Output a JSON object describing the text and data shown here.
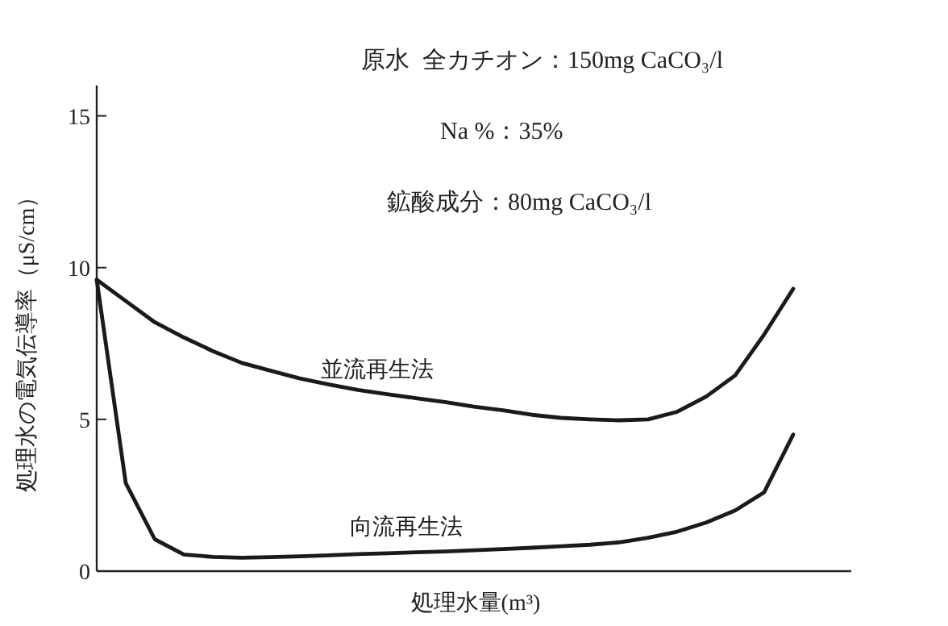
{
  "chart_data": {
    "type": "line",
    "xlabel": "処理水量(m³)",
    "ylabel": "処理水の電気伝導率（μS/cm）",
    "annotations": [
      "原水",
      "全カチオン：150mg CaCO₃/l",
      "Na %：35%",
      "鉱酸成分：80mg CaCO₃/l"
    ],
    "categories": [
      null,
      null,
      null,
      null,
      null,
      null,
      null,
      null,
      null,
      null,
      null,
      null,
      null,
      null,
      null,
      null,
      null,
      null,
      null,
      null,
      null,
      null,
      null,
      null,
      null,
      null
    ],
    "series": [
      {
        "name": "並流再生法",
        "color": "#1a1a1a",
        "values": [
          9.6,
          8.9,
          8.2,
          7.7,
          7.25,
          6.86,
          6.6,
          6.35,
          6.15,
          5.97,
          5.83,
          5.7,
          5.57,
          5.42,
          5.3,
          5.15,
          5.05,
          5.0,
          4.97,
          5.0,
          5.25,
          5.75,
          6.45,
          7.8,
          9.3,
          null
        ]
      },
      {
        "name": "向流再生法",
        "color": "#1a1a1a",
        "values": [
          9.6,
          2.9,
          1.05,
          0.55,
          0.47,
          0.44,
          0.46,
          0.49,
          0.52,
          0.56,
          0.59,
          0.62,
          0.65,
          0.69,
          0.73,
          0.77,
          0.82,
          0.87,
          0.95,
          1.1,
          1.3,
          1.6,
          2.0,
          2.6,
          4.5,
          null
        ]
      }
    ],
    "ylim": [
      0,
      16
    ],
    "yticks": [
      0,
      5,
      10,
      15
    ],
    "tick_labels": "y",
    "line_style": "solid"
  }
}
